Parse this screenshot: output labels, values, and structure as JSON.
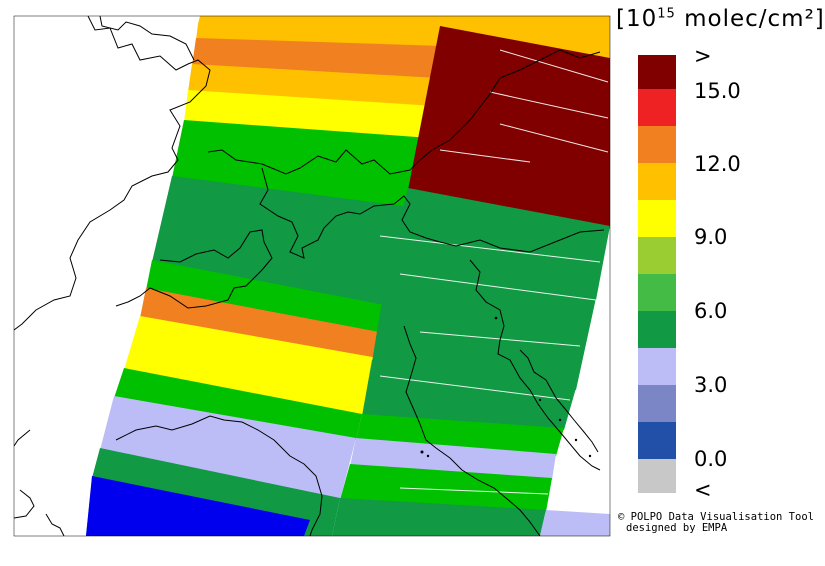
{
  "legend": {
    "unit_prefix": "[10",
    "unit_exponent": "15",
    "unit_suffix": " molec/cm²]",
    "labels": [
      ">",
      "15.0",
      "12.0",
      "9.0",
      "6.0",
      "3.0",
      "0.0",
      "<"
    ],
    "swatches": [
      "#800000",
      "#ee2222",
      "#f08020",
      "#ffc000",
      "#ffff00",
      "#9acd32",
      "#44bb44",
      "#119944",
      "#bcbcf6",
      "#7a86c6",
      "#2250a8",
      "#c8c8c8"
    ]
  },
  "credits": {
    "line1": "© POLPO Data Visualisation Tool",
    "line2": "designed by EMPA"
  }
}
